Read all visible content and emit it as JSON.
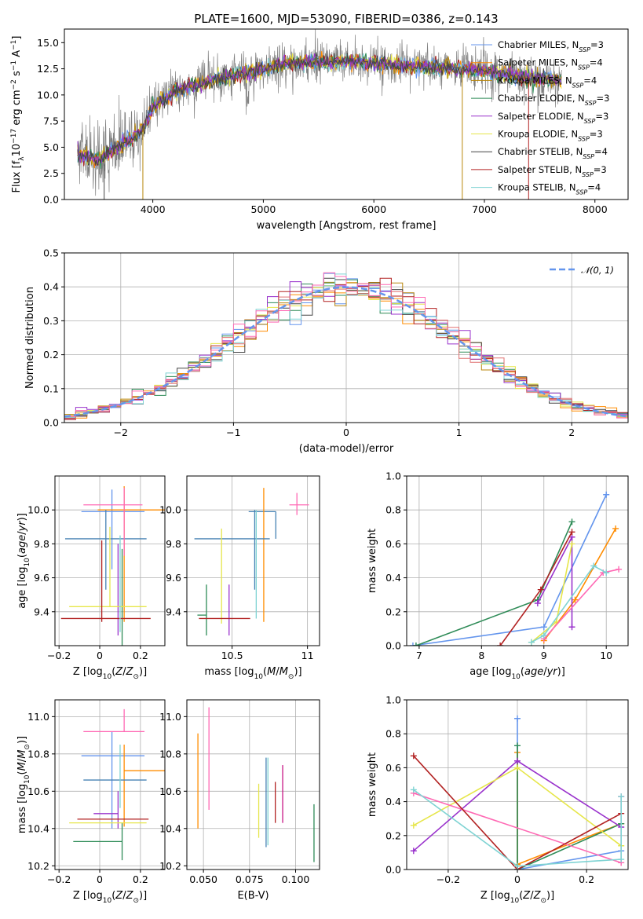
{
  "figure": {
    "title": "PLATE=1600, MJD=53090, FIBERID=0386, z=0.143"
  },
  "models": [
    {
      "name": "Chabrier MILES",
      "nssp": "3",
      "color": "#6495ed"
    },
    {
      "name": "Salpeter MILES",
      "nssp": "4",
      "color": "#ff8c00"
    },
    {
      "name": "Kroupa MILES",
      "nssp": "4",
      "color": "#b8860b"
    },
    {
      "name": "Chabrier ELODIE",
      "nssp": "3",
      "color": "#2e8b57"
    },
    {
      "name": "Salpeter ELODIE",
      "nssp": "3",
      "color": "#9932cc"
    },
    {
      "name": "Kroupa ELODIE",
      "nssp": "3",
      "color": "#e6e64a"
    },
    {
      "name": "Chabrier STELIB",
      "nssp": "4",
      "color": "#444444"
    },
    {
      "name": "Salpeter STELIB",
      "nssp": "3",
      "color": "#b22222"
    },
    {
      "name": "Kroupa STELIB",
      "nssp": "4",
      "color": "#7fd3d3"
    }
  ],
  "chart_data": [
    {
      "id": "spectrum",
      "type": "line",
      "xlabel": "wavelength [Angstrom, rest frame]",
      "ylabel": "Flux [fλ10⁻¹⁷ erg cm⁻² s⁻¹ A⁻¹]",
      "xlim": [
        3200,
        8300
      ],
      "ylim": [
        0,
        16.3
      ],
      "xticks": [
        4000,
        5000,
        6000,
        7000,
        8000
      ],
      "yticks": [
        0.0,
        2.5,
        5.0,
        7.5,
        10.0,
        12.5,
        15.0
      ],
      "wavelength_range": [
        3320,
        7700
      ],
      "continuum": {
        "x": [
          3320,
          3500,
          3700,
          3900,
          4000,
          4200,
          4500,
          4800,
          5000,
          5200,
          5500,
          5800,
          6000,
          6300,
          6600,
          7000,
          7300,
          7700
        ],
        "y": [
          4.3,
          3.8,
          5.2,
          6.5,
          8.8,
          10.3,
          11.3,
          12.0,
          12.5,
          13.0,
          13.2,
          13.2,
          13.0,
          12.8,
          12.6,
          12.3,
          11.8,
          11.4
        ]
      },
      "legend": "top-right"
    },
    {
      "id": "residuals",
      "type": "line",
      "xlabel": "(data-model)/error",
      "ylabel": "Normed distribution",
      "xlim": [
        -2.5,
        2.5
      ],
      "ylim": [
        0,
        0.5
      ],
      "xticks": [
        -2,
        -1,
        0,
        1,
        2
      ],
      "yticks": [
        0.0,
        0.1,
        0.2,
        0.3,
        0.4,
        0.5
      ],
      "bin_width": 0.1,
      "reference_curve": {
        "name": "𝒩(0, 1)",
        "mean": 0,
        "sigma": 1,
        "color": "#6495ed",
        "style": "dashed"
      },
      "extra_colors": [
        "#ff69b4",
        "#e07070"
      ],
      "grid": true,
      "legend": "top-right"
    },
    {
      "id": "age-vs-Z",
      "type": "scatter",
      "xlabel": "Z [log₁₀(Z/Z⊙)]",
      "ylabel": "age  [log₁₀(age/yr)]",
      "xlim": [
        -0.22,
        0.32
      ],
      "ylim": [
        9.2,
        10.2
      ],
      "xticks": [
        -0.2,
        0.0,
        0.2
      ],
      "yticks": [
        9.4,
        9.6,
        9.8,
        10.0
      ],
      "grid": true,
      "points": [
        {
          "x": 0.06,
          "y": 9.99,
          "xerr": [
            0.15,
            0.16
          ],
          "yerr": [
            0.34,
            0.13
          ],
          "color": "#6495ed"
        },
        {
          "x": 0.12,
          "y": 10.0,
          "xerr": [
            0.13,
            0.2
          ],
          "yerr": [
            0.66,
            0.14
          ],
          "color": "#ff8c00"
        },
        {
          "x": 0.03,
          "y": 9.83,
          "xerr": [
            0.2,
            0.2
          ],
          "yerr": [
            0.3,
            0.17
          ],
          "color": "#4682b4"
        },
        {
          "x": 0.11,
          "y": 9.35,
          "xerr": [
            0.0,
            0.0
          ],
          "yerr": [
            0.22,
            0.42
          ],
          "color": "#2e8b57"
        },
        {
          "x": 0.09,
          "y": 9.38,
          "xerr": [
            0.0,
            0.0
          ],
          "yerr": [
            0.12,
            0.42
          ],
          "color": "#9932cc"
        },
        {
          "x": 0.05,
          "y": 9.43,
          "xerr": [
            0.2,
            0.18
          ],
          "yerr": [
            0.0,
            0.47
          ],
          "color": "#e6e64a"
        },
        {
          "x": 0.12,
          "y": 10.03,
          "xerr": [
            0.2,
            0.09
          ],
          "yerr": [
            0.3,
            0.1
          ],
          "color": "#ff69b4"
        },
        {
          "x": 0.01,
          "y": 9.36,
          "xerr": [
            0.2,
            0.24
          ],
          "yerr": [
            0.02,
            0.46
          ],
          "color": "#b22222"
        },
        {
          "x": 0.1,
          "y": 9.38,
          "xerr": [
            0.0,
            0.0
          ],
          "yerr": [
            0.1,
            0.47
          ],
          "color": "#7fd3d3"
        }
      ]
    },
    {
      "id": "age-vs-mass",
      "type": "scatter",
      "xlabel": "mass [log₁₀(M/M⊙)]",
      "ylabel": "",
      "xlim": [
        10.2,
        11.08
      ],
      "ylim": [
        9.2,
        10.2
      ],
      "xticks": [
        10.5,
        11.0
      ],
      "yticks": [
        9.4,
        9.6,
        9.8,
        10.0
      ],
      "grid": true,
      "points": [
        {
          "x": 10.79,
          "y": 9.99,
          "xerr": [
            0.18,
            0.0
          ],
          "yerr": [
            0.16,
            0.0
          ],
          "color": "#4682b4"
        },
        {
          "x": 10.71,
          "y": 10.0,
          "xerr": [
            0.0,
            0.0
          ],
          "yerr": [
            0.66,
            0.13
          ],
          "color": "#ff8c00"
        },
        {
          "x": 10.65,
          "y": 9.83,
          "xerr": [
            0.4,
            0.1
          ],
          "yerr": [
            0.3,
            0.17
          ],
          "color": "#4682b4"
        },
        {
          "x": 10.33,
          "y": 9.38,
          "xerr": [
            0.06,
            0.0
          ],
          "yerr": [
            0.12,
            0.18
          ],
          "color": "#2e8b57"
        },
        {
          "x": 10.48,
          "y": 9.38,
          "xerr": [
            0.0,
            0.0
          ],
          "yerr": [
            0.12,
            0.18
          ],
          "color": "#9932cc"
        },
        {
          "x": 10.43,
          "y": 9.43,
          "xerr": [
            0.0,
            0.0
          ],
          "yerr": [
            0.1,
            0.46
          ],
          "color": "#e6e64a"
        },
        {
          "x": 10.93,
          "y": 10.03,
          "xerr": [
            0.05,
            0.08
          ],
          "yerr": [
            0.06,
            0.07
          ],
          "color": "#ff69b4"
        },
        {
          "x": 10.45,
          "y": 9.36,
          "xerr": [
            0.17,
            0.17
          ],
          "yerr": [
            0.0,
            0.0
          ],
          "color": "#b22222"
        },
        {
          "x": 10.66,
          "y": 9.38,
          "xerr": [
            0.0,
            0.0
          ],
          "yerr": [
            0.02,
            0.62
          ],
          "color": "#7fd3d3"
        }
      ]
    },
    {
      "id": "massweight-vs-age",
      "type": "line",
      "xlabel": "age  [log₁₀(age/yr)]",
      "ylabel": "mass weight",
      "xlim": [
        6.8,
        10.35
      ],
      "ylim": [
        0,
        1.0
      ],
      "xticks": [
        7,
        8,
        9,
        10
      ],
      "yticks": [
        0.0,
        0.2,
        0.4,
        0.6,
        0.8,
        1.0
      ],
      "grid": true,
      "series": [
        {
          "color": "#6495ed",
          "x": [
            6.9,
            9.0,
            10.0
          ],
          "y": [
            0.0,
            0.11,
            0.89
          ]
        },
        {
          "color": "#ff8c00",
          "x": [
            9.0,
            9.5,
            10.15
          ],
          "y": [
            0.03,
            0.27,
            0.69
          ]
        },
        {
          "color": "#2e8b57",
          "x": [
            6.95,
            8.9,
            9.45
          ],
          "y": [
            0.0,
            0.27,
            0.73
          ]
        },
        {
          "color": "#9932cc",
          "x": [
            8.9,
            9.45,
            9.45
          ],
          "y": [
            0.25,
            0.64,
            0.11
          ]
        },
        {
          "color": "#e6e64a",
          "x": [
            8.8,
            9.2,
            9.45
          ],
          "y": [
            0.02,
            0.14,
            0.6
          ]
        },
        {
          "color": "#ff69b4",
          "x": [
            9.0,
            9.95,
            10.2
          ],
          "y": [
            0.04,
            0.43,
            0.45
          ]
        },
        {
          "color": "#b22222",
          "x": [
            8.3,
            8.95,
            9.45
          ],
          "y": [
            0.0,
            0.33,
            0.67
          ]
        },
        {
          "color": "#7fd3d3",
          "x": [
            8.8,
            9.0,
            9.8,
            10.0
          ],
          "y": [
            0.02,
            0.06,
            0.47,
            0.43
          ]
        }
      ]
    },
    {
      "id": "mass-vs-Z",
      "type": "scatter",
      "xlabel": "Z [log₁₀(Z/Z⊙)]",
      "ylabel": "mass [log₁₀(M/M⊙)]",
      "xlim": [
        -0.22,
        0.32
      ],
      "ylim": [
        10.18,
        11.09
      ],
      "xticks": [
        -0.2,
        0.0,
        0.2
      ],
      "yticks": [
        10.2,
        10.4,
        10.6,
        10.8,
        11.0
      ],
      "grid": true,
      "points": [
        {
          "x": 0.06,
          "y": 10.79,
          "xerr": [
            0.15,
            0.16
          ],
          "yerr": [
            0.39,
            0.13
          ],
          "color": "#6495ed"
        },
        {
          "x": 0.12,
          "y": 10.71,
          "xerr": [
            0.0,
            0.2
          ],
          "yerr": [
            0.3,
            0.14
          ],
          "color": "#ff8c00"
        },
        {
          "x": 0.03,
          "y": 10.66,
          "xerr": [
            0.11,
            0.2
          ],
          "yerr": [
            0.0,
            0.0
          ],
          "color": "#4682b4"
        },
        {
          "x": 0.11,
          "y": 10.33,
          "xerr": [
            0.24,
            0.0
          ],
          "yerr": [
            0.1,
            0.1
          ],
          "color": "#2e8b57"
        },
        {
          "x": 0.09,
          "y": 10.48,
          "xerr": [
            0.12,
            0.0
          ],
          "yerr": [
            0.08,
            0.12
          ],
          "color": "#9932cc"
        },
        {
          "x": 0.05,
          "y": 10.43,
          "xerr": [
            0.2,
            0.18
          ],
          "yerr": [
            0.0,
            0.0
          ],
          "color": "#e6e64a"
        },
        {
          "x": 0.12,
          "y": 10.92,
          "xerr": [
            0.2,
            0.1
          ],
          "yerr": [
            0.0,
            0.12
          ],
          "color": "#ff69b4"
        },
        {
          "x": 0.01,
          "y": 10.45,
          "xerr": [
            0.12,
            0.23
          ],
          "yerr": [
            0.0,
            0.0
          ],
          "color": "#b22222"
        },
        {
          "x": 0.1,
          "y": 10.66,
          "xerr": [
            0.0,
            0.0
          ],
          "yerr": [
            0.15,
            0.19
          ],
          "color": "#7fd3d3"
        }
      ]
    },
    {
      "id": "mass-vs-EBV",
      "type": "scatter",
      "xlabel": "E(B-V)",
      "ylabel": "",
      "xlim": [
        0.041,
        0.113
      ],
      "ylim": [
        10.18,
        11.09
      ],
      "xticks": [
        0.05,
        0.075,
        0.1
      ],
      "xtick_labels": [
        "0.050",
        "0.075",
        "0.100"
      ],
      "yticks": [
        10.2,
        10.4,
        10.6,
        10.8,
        11.0
      ],
      "grid": true,
      "points": [
        {
          "x": 0.047,
          "y": 10.65,
          "yerr": [
            0.25,
            0.26
          ],
          "color": "#ff8c00"
        },
        {
          "x": 0.053,
          "y": 10.75,
          "yerr": [
            0.25,
            0.3
          ],
          "color": "#ff69b4"
        },
        {
          "x": 0.08,
          "y": 10.5,
          "yerr": [
            0.15,
            0.14
          ],
          "color": "#e6e64a"
        },
        {
          "x": 0.084,
          "y": 10.57,
          "yerr": [
            0.27,
            0.21
          ],
          "color": "#4682b4"
        },
        {
          "x": 0.085,
          "y": 10.53,
          "yerr": [
            0.22,
            0.25
          ],
          "color": "#7fd3d3"
        },
        {
          "x": 0.089,
          "y": 10.5,
          "yerr": [
            0.07,
            0.15
          ],
          "color": "#b22222"
        },
        {
          "x": 0.093,
          "y": 10.55,
          "yerr": [
            0.12,
            0.19
          ],
          "color": "#c71585"
        },
        {
          "x": 0.11,
          "y": 10.38,
          "yerr": [
            0.16,
            0.15
          ],
          "color": "#2e8b57"
        }
      ]
    },
    {
      "id": "massweight-vs-Z",
      "type": "line",
      "xlabel": "Z [log₁₀(Z/Z⊙)]",
      "ylabel": "mass weight",
      "xlim": [
        -0.32,
        0.32
      ],
      "ylim": [
        0,
        1.0
      ],
      "xticks": [
        -0.2,
        0.0,
        0.2
      ],
      "yticks": [
        0.0,
        0.2,
        0.4,
        0.6,
        0.8,
        1.0
      ],
      "grid": true,
      "series": [
        {
          "color": "#6495ed",
          "x": [
            0.0,
            0.0,
            0.3
          ],
          "y": [
            0.89,
            0.0,
            0.11
          ]
        },
        {
          "color": "#ff8c00",
          "x": [
            0.0,
            0.0,
            0.3
          ],
          "y": [
            0.69,
            0.03,
            0.27
          ]
        },
        {
          "color": "#2e8b57",
          "x": [
            0.0,
            0.0,
            0.3
          ],
          "y": [
            0.73,
            0.0,
            0.27
          ]
        },
        {
          "color": "#9932cc",
          "x": [
            -0.3,
            0.0,
            0.3
          ],
          "y": [
            0.11,
            0.64,
            0.25
          ]
        },
        {
          "color": "#e6e64a",
          "x": [
            -0.3,
            0.0,
            0.3
          ],
          "y": [
            0.26,
            0.6,
            0.14
          ]
        },
        {
          "color": "#ff69b4",
          "x": [
            -0.3,
            0.3,
            0.3
          ],
          "y": [
            0.45,
            0.04,
            0.43
          ]
        },
        {
          "color": "#b22222",
          "x": [
            -0.3,
            0.0,
            0.3
          ],
          "y": [
            0.67,
            0.0,
            0.33
          ]
        },
        {
          "color": "#7fd3d3",
          "x": [
            -0.3,
            0.0,
            0.3,
            0.3
          ],
          "y": [
            0.47,
            0.02,
            0.06,
            0.43
          ]
        }
      ]
    }
  ]
}
